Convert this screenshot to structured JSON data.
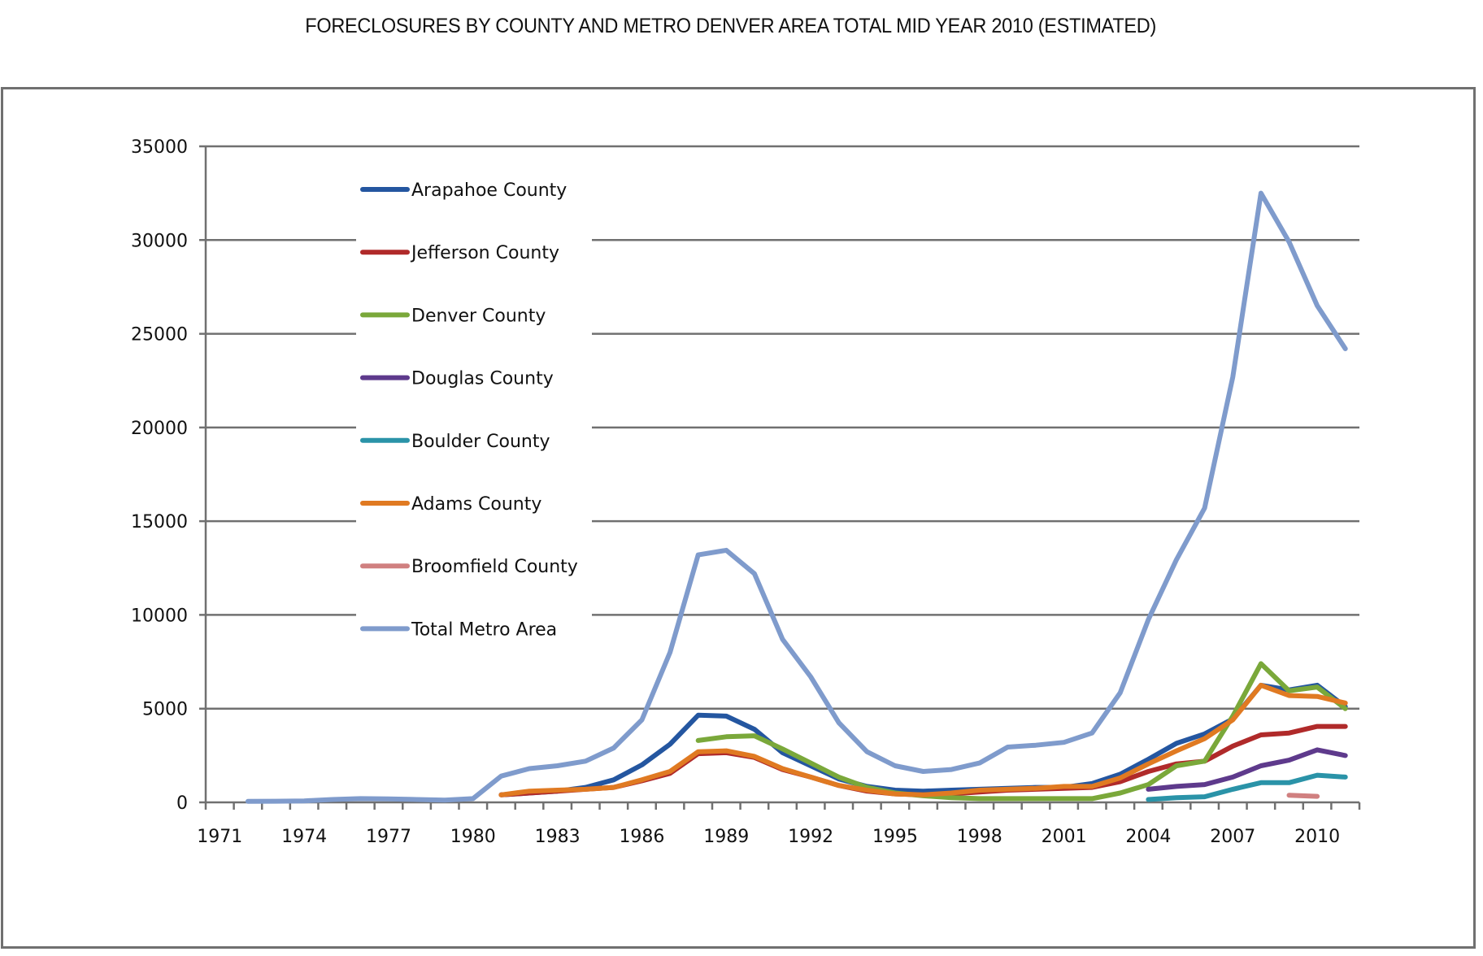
{
  "chart_data": {
    "type": "line",
    "title": "FORECLOSURES BY COUNTY AND METRO DENVER AREA TOTAL MID YEAR 2010 (ESTIMATED)",
    "xlabel": "",
    "ylabel": "",
    "ylim": [
      0,
      35000
    ],
    "yticks": [
      0,
      5000,
      10000,
      15000,
      20000,
      25000,
      30000,
      35000
    ],
    "ytick_labels": [
      "0",
      "5000",
      "10000",
      "15000",
      "20000",
      "25000",
      "30000",
      "35000"
    ],
    "grid": "horizontal",
    "legend_position": "upper-left-inside",
    "categories": [
      "1971",
      "1972",
      "1973",
      "1974",
      "1975",
      "1976",
      "1977",
      "1978",
      "1979",
      "1980",
      "1981",
      "1982",
      "1983",
      "1984",
      "1985",
      "1986",
      "1987",
      "1988",
      "1989",
      "1990",
      "1991",
      "1992",
      "1993",
      "1994",
      "1995",
      "1996",
      "1997",
      "1998",
      "1999",
      "2000",
      "2001",
      "2002",
      "2003",
      "2004",
      "2005",
      "2006",
      "2007",
      "2008",
      "2009",
      "2010",
      "2011"
    ],
    "xtick_labels": [
      "1971",
      "1974",
      "1977",
      "1980",
      "1983",
      "1986",
      "1989",
      "1992",
      "1995",
      "1998",
      "2001",
      "2004",
      "2007",
      "2010"
    ],
    "series": [
      {
        "name": "Arapahoe County",
        "color": "#2456A0",
        "values": [
          null,
          null,
          null,
          null,
          null,
          null,
          null,
          null,
          null,
          null,
          400,
          500,
          600,
          800,
          1200,
          2000,
          3100,
          4650,
          4600,
          3900,
          2650,
          1950,
          1250,
          850,
          650,
          600,
          650,
          700,
          750,
          800,
          800,
          1000,
          1500,
          2300,
          3150,
          3650,
          4450,
          6250,
          6000,
          6250,
          5100
        ]
      },
      {
        "name": "Jefferson County",
        "color": "#B02A2A",
        "values": [
          null,
          null,
          null,
          null,
          null,
          null,
          null,
          null,
          null,
          null,
          400,
          500,
          600,
          700,
          800,
          1150,
          1550,
          2600,
          2650,
          2400,
          1750,
          1350,
          900,
          600,
          450,
          400,
          450,
          550,
          650,
          700,
          750,
          800,
          1100,
          1650,
          2050,
          2200,
          3000,
          3600,
          3700,
          4050,
          4050
        ]
      },
      {
        "name": "Denver County",
        "color": "#7AA83A",
        "values": [
          null,
          null,
          null,
          null,
          null,
          null,
          null,
          null,
          null,
          null,
          null,
          null,
          null,
          null,
          null,
          null,
          null,
          3300,
          3500,
          3550,
          2850,
          2100,
          1350,
          800,
          500,
          350,
          250,
          200,
          200,
          200,
          200,
          200,
          500,
          950,
          1950,
          2200,
          4600,
          7400,
          5950,
          6150,
          5000
        ]
      },
      {
        "name": "Douglas County",
        "color": "#5E3A8C",
        "values": [
          null,
          null,
          null,
          null,
          null,
          null,
          null,
          null,
          null,
          null,
          null,
          null,
          null,
          null,
          null,
          null,
          null,
          null,
          null,
          null,
          null,
          null,
          null,
          null,
          null,
          null,
          null,
          null,
          null,
          null,
          null,
          null,
          null,
          700,
          850,
          950,
          1350,
          1950,
          2250,
          2800,
          2500
        ]
      },
      {
        "name": "Boulder County",
        "color": "#2A93A8",
        "values": [
          null,
          null,
          null,
          null,
          null,
          null,
          null,
          null,
          null,
          null,
          null,
          null,
          null,
          null,
          null,
          null,
          null,
          null,
          null,
          null,
          null,
          null,
          null,
          null,
          null,
          null,
          null,
          null,
          null,
          null,
          null,
          null,
          null,
          150,
          250,
          300,
          700,
          1050,
          1050,
          1450,
          1350
        ]
      },
      {
        "name": "Adams County",
        "color": "#E07A22",
        "values": [
          null,
          null,
          null,
          null,
          null,
          null,
          null,
          null,
          null,
          null,
          400,
          600,
          650,
          700,
          800,
          1200,
          1650,
          2700,
          2750,
          2450,
          1800,
          1350,
          900,
          650,
          450,
          400,
          500,
          650,
          700,
          750,
          850,
          850,
          1300,
          2050,
          2750,
          3400,
          4400,
          6250,
          5700,
          5650,
          5300
        ]
      },
      {
        "name": "Broomfield County",
        "color": "#D08080",
        "values": [
          null,
          null,
          null,
          null,
          null,
          null,
          null,
          null,
          null,
          null,
          null,
          null,
          null,
          null,
          null,
          null,
          null,
          null,
          null,
          null,
          null,
          null,
          null,
          null,
          null,
          null,
          null,
          null,
          null,
          null,
          null,
          null,
          null,
          null,
          null,
          null,
          null,
          null,
          380,
          320,
          null
        ]
      },
      {
        "name": "Total Metro Area",
        "color": "#7F9BCC",
        "values": [
          null,
          50,
          60,
          80,
          150,
          200,
          180,
          150,
          120,
          200,
          1400,
          1800,
          1950,
          2200,
          2900,
          4400,
          8000,
          13200,
          13450,
          12200,
          8700,
          6700,
          4250,
          2700,
          1950,
          1650,
          1750,
          2100,
          2950,
          3050,
          3200,
          3700,
          5850,
          9750,
          12950,
          15700,
          22700,
          32500,
          29900,
          26500,
          24200
        ]
      }
    ]
  }
}
